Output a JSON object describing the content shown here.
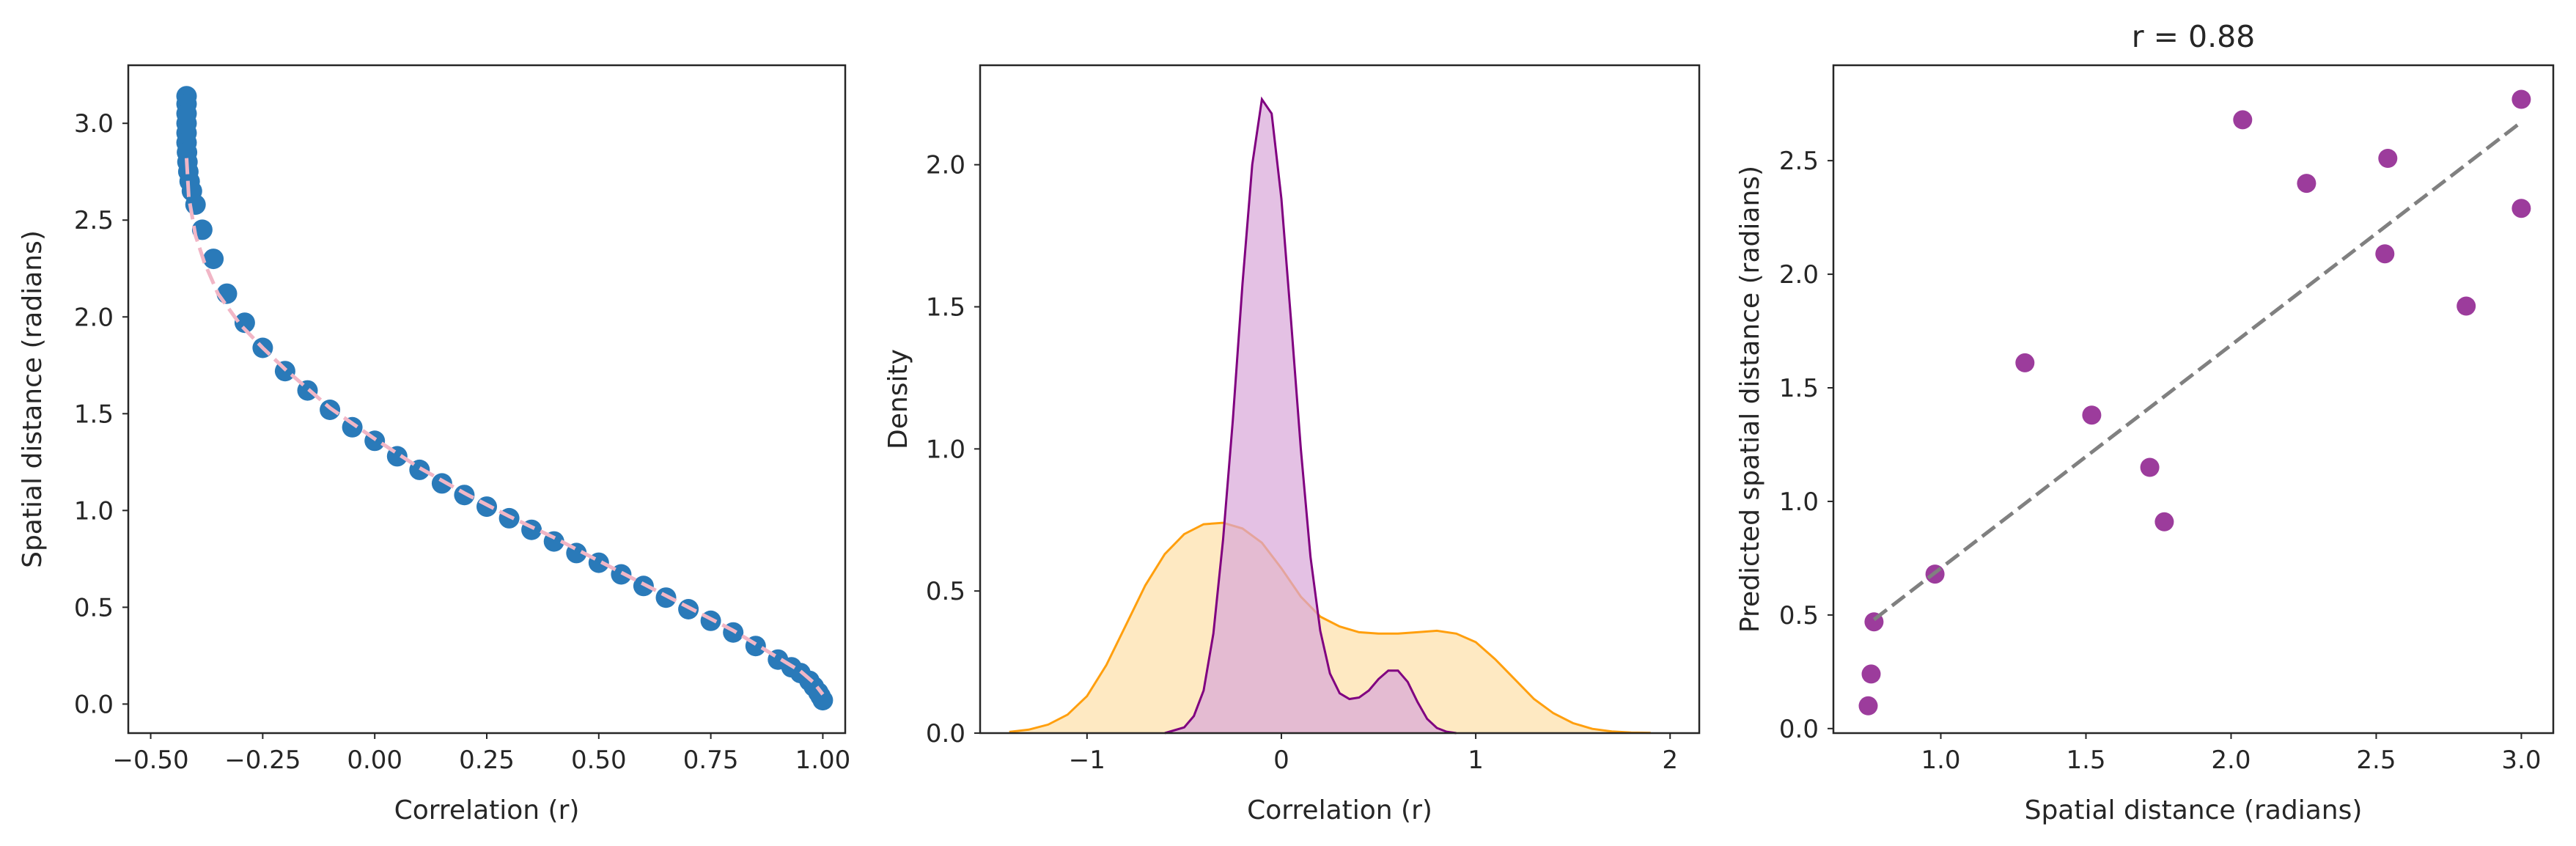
{
  "chart_data": [
    {
      "type": "scatter",
      "xlabel": "Correlation (r)",
      "ylabel": "Spatial distance (radians)",
      "xlim": [
        -0.55,
        1.05
      ],
      "ylim": [
        -0.15,
        3.3
      ],
      "xticks": [
        -0.5,
        -0.25,
        0.0,
        0.25,
        0.5,
        0.75,
        1.0
      ],
      "xtick_labels": [
        "−0.50",
        "−0.25",
        "0.00",
        "0.25",
        "0.50",
        "0.75",
        "1.00"
      ],
      "yticks": [
        0.0,
        0.5,
        1.0,
        1.5,
        2.0,
        2.5,
        3.0
      ],
      "ytick_labels": [
        "0.0",
        "0.5",
        "1.0",
        "1.5",
        "2.0",
        "2.5",
        "3.0"
      ],
      "grid": false,
      "series": [
        {
          "kind": "points",
          "color": "#2a7ab9",
          "x": [
            -0.42,
            -0.42,
            -0.42,
            -0.42,
            -0.42,
            -0.42,
            -0.419,
            -0.418,
            -0.416,
            -0.413,
            -0.408,
            -0.4,
            -0.385,
            -0.36,
            -0.33,
            -0.29,
            -0.25,
            -0.2,
            -0.15,
            -0.1,
            -0.05,
            0.0,
            0.05,
            0.1,
            0.15,
            0.2,
            0.25,
            0.3,
            0.35,
            0.4,
            0.45,
            0.5,
            0.55,
            0.6,
            0.65,
            0.7,
            0.75,
            0.8,
            0.85,
            0.9,
            0.93,
            0.95,
            0.97,
            0.98,
            0.99,
            0.995,
            1.0
          ],
          "y": [
            3.14,
            3.1,
            3.05,
            3.0,
            2.95,
            2.9,
            2.85,
            2.8,
            2.75,
            2.7,
            2.65,
            2.58,
            2.45,
            2.3,
            2.12,
            1.97,
            1.84,
            1.72,
            1.62,
            1.52,
            1.43,
            1.36,
            1.28,
            1.21,
            1.14,
            1.08,
            1.02,
            0.96,
            0.9,
            0.84,
            0.78,
            0.73,
            0.67,
            0.61,
            0.55,
            0.49,
            0.43,
            0.37,
            0.3,
            0.23,
            0.19,
            0.16,
            0.12,
            0.09,
            0.06,
            0.04,
            0.02
          ]
        },
        {
          "kind": "fit-line",
          "style": "dashed",
          "color": "#f1b6c6",
          "x": [
            -0.42,
            -0.415,
            -0.4,
            -0.38,
            -0.35,
            -0.3,
            -0.25,
            -0.2,
            -0.1,
            0.0,
            0.1,
            0.2,
            0.3,
            0.4,
            0.5,
            0.6,
            0.7,
            0.8,
            0.9,
            0.95,
            0.98,
            1.0
          ],
          "y": [
            2.82,
            2.62,
            2.42,
            2.28,
            2.12,
            1.96,
            1.84,
            1.73,
            1.53,
            1.37,
            1.22,
            1.09,
            0.97,
            0.86,
            0.74,
            0.62,
            0.5,
            0.38,
            0.24,
            0.17,
            0.11,
            0.05
          ]
        }
      ]
    },
    {
      "type": "area",
      "xlabel": "Correlation (r)",
      "ylabel": "Density",
      "xlim": [
        -1.55,
        2.15
      ],
      "ylim": [
        0.0,
        2.35
      ],
      "xticks": [
        -1,
        0,
        1,
        2
      ],
      "xtick_labels": [
        "−1",
        "0",
        "1",
        "2"
      ],
      "yticks": [
        0.0,
        0.5,
        1.0,
        1.5,
        2.0
      ],
      "ytick_labels": [
        "0.0",
        "0.5",
        "1.0",
        "1.5",
        "2.0"
      ],
      "grid": false,
      "series": [
        {
          "kind": "kde",
          "line_color": "#ff9f0e",
          "fill_color": "#fde0a8",
          "x": [
            -1.4,
            -1.3,
            -1.2,
            -1.1,
            -1.0,
            -0.9,
            -0.8,
            -0.7,
            -0.6,
            -0.5,
            -0.4,
            -0.3,
            -0.2,
            -0.1,
            0.0,
            0.1,
            0.2,
            0.3,
            0.4,
            0.5,
            0.6,
            0.7,
            0.8,
            0.9,
            1.0,
            1.1,
            1.2,
            1.3,
            1.4,
            1.5,
            1.6,
            1.7,
            1.8,
            1.9
          ],
          "y": [
            0.004,
            0.012,
            0.03,
            0.065,
            0.13,
            0.24,
            0.38,
            0.52,
            0.63,
            0.7,
            0.735,
            0.74,
            0.72,
            0.67,
            0.58,
            0.48,
            0.41,
            0.375,
            0.355,
            0.35,
            0.35,
            0.355,
            0.36,
            0.35,
            0.32,
            0.26,
            0.19,
            0.12,
            0.07,
            0.035,
            0.015,
            0.006,
            0.002,
            0.001
          ]
        },
        {
          "kind": "kde",
          "line_color": "#800080",
          "fill_color": "#d8a6d8",
          "x": [
            -0.6,
            -0.5,
            -0.45,
            -0.4,
            -0.35,
            -0.3,
            -0.25,
            -0.2,
            -0.15,
            -0.1,
            -0.05,
            0.0,
            0.05,
            0.1,
            0.15,
            0.2,
            0.25,
            0.3,
            0.35,
            0.4,
            0.45,
            0.5,
            0.55,
            0.6,
            0.65,
            0.7,
            0.75,
            0.8,
            0.85,
            0.9
          ],
          "y": [
            0.0,
            0.02,
            0.06,
            0.15,
            0.35,
            0.68,
            1.1,
            1.58,
            2.0,
            2.23,
            2.18,
            1.88,
            1.45,
            1.0,
            0.62,
            0.36,
            0.21,
            0.14,
            0.12,
            0.125,
            0.15,
            0.19,
            0.22,
            0.22,
            0.18,
            0.11,
            0.05,
            0.018,
            0.005,
            0.0
          ]
        }
      ]
    },
    {
      "type": "scatter",
      "title": "r = 0.88",
      "xlabel": "Spatial distance (radians)",
      "ylabel": "Predicted spatial distance (radians)",
      "xlim": [
        0.63,
        3.11
      ],
      "ylim": [
        -0.02,
        2.92
      ],
      "xticks": [
        1.0,
        1.5,
        2.0,
        2.5,
        3.0
      ],
      "xtick_labels": [
        "1.0",
        "1.5",
        "2.0",
        "2.5",
        "3.0"
      ],
      "yticks": [
        0.0,
        0.5,
        1.0,
        1.5,
        2.0,
        2.5
      ],
      "ytick_labels": [
        "0.0",
        "0.5",
        "1.0",
        "1.5",
        "2.0",
        "2.5"
      ],
      "grid": false,
      "series": [
        {
          "kind": "points",
          "color": "#8b1a8b",
          "x": [
            0.75,
            0.76,
            0.77,
            0.98,
            1.29,
            1.52,
            1.72,
            1.77,
            2.04,
            2.26,
            2.53,
            2.54,
            2.81,
            3.0,
            3.0
          ],
          "y": [
            0.1,
            0.24,
            0.47,
            0.68,
            1.61,
            1.38,
            1.15,
            0.91,
            2.68,
            2.4,
            2.09,
            2.51,
            1.86,
            2.29,
            2.77
          ]
        },
        {
          "kind": "fit-line",
          "style": "dashed",
          "color": "#808080",
          "x": [
            0.77,
            3.0
          ],
          "y": [
            0.48,
            2.67
          ]
        }
      ]
    }
  ]
}
